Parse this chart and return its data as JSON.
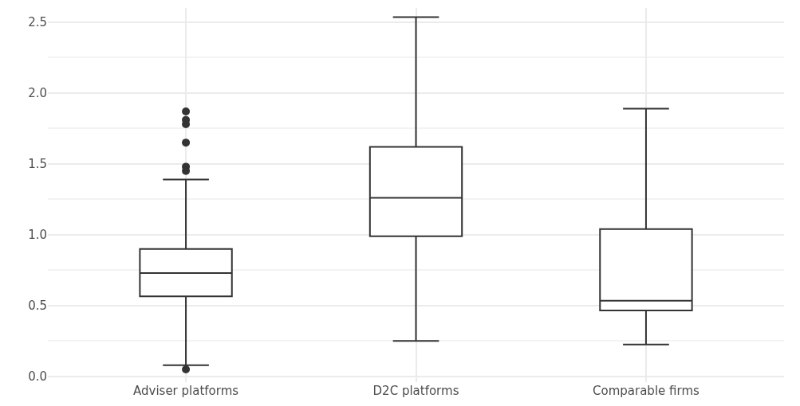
{
  "chart_data": {
    "type": "box",
    "categories": [
      "Adviser platforms",
      "D2C platforms",
      "Comparable firms"
    ],
    "boxes": [
      {
        "low": 0.08,
        "q1": 0.565,
        "median": 0.73,
        "q3": 0.9,
        "high": 1.39,
        "outliers": [
          0.05,
          1.45,
          1.48,
          1.65,
          1.78,
          1.81,
          1.87
        ]
      },
      {
        "low": 0.25,
        "q1": 0.99,
        "median": 1.26,
        "q3": 1.62,
        "high": 2.535
      },
      {
        "low": 0.225,
        "q1": 0.465,
        "median": 0.535,
        "q3": 1.04,
        "high": 1.89
      }
    ],
    "color": "#333333",
    "ylim": [
      -0.04,
      2.6
    ],
    "yticks": [
      {
        "value": 0,
        "label": "0.0"
      },
      0.5,
      {
        "value": 1,
        "label": "1.0"
      },
      1.5,
      {
        "value": 2,
        "label": "2.0"
      },
      2.5
    ],
    "grid": true
  }
}
